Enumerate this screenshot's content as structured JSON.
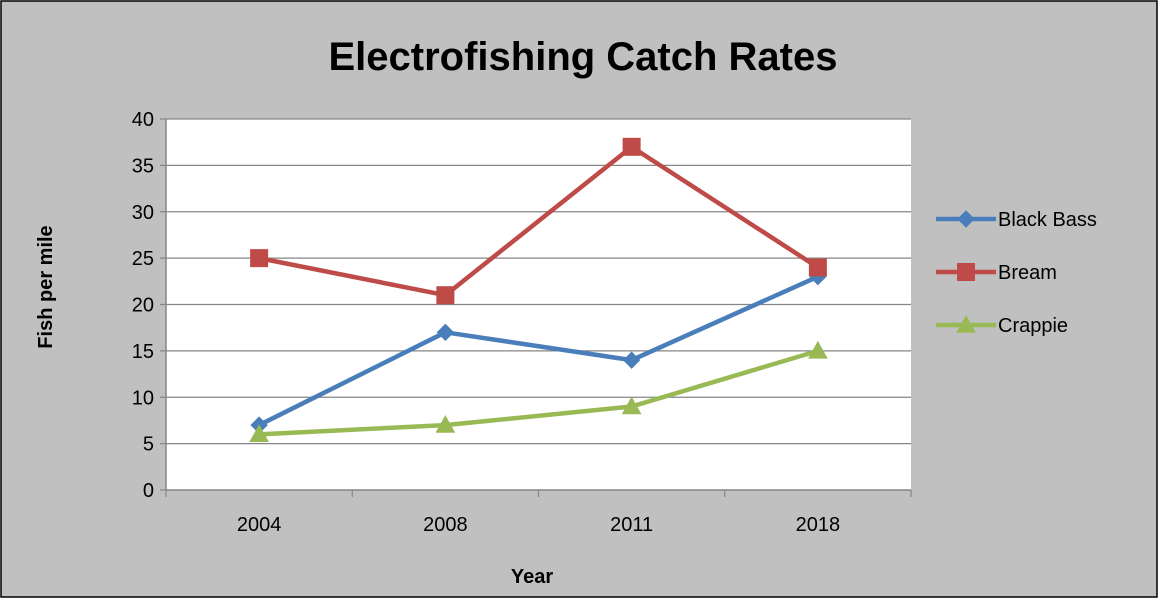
{
  "chart_data": {
    "type": "line",
    "title": "Electrofishing Catch Rates",
    "xlabel": "Year",
    "ylabel": "Fish per mile",
    "categories": [
      "2004",
      "2008",
      "2011",
      "2018"
    ],
    "ylim": [
      0,
      40
    ],
    "yticks": [
      0,
      5,
      10,
      15,
      20,
      25,
      30,
      35,
      40
    ],
    "grid": true,
    "legend_position": "right",
    "series": [
      {
        "name": "Black Bass",
        "values": [
          7,
          17,
          14,
          23
        ],
        "color": "#4a7ebb",
        "marker": "diamond"
      },
      {
        "name": "Bream",
        "values": [
          25,
          21,
          37,
          24
        ],
        "color": "#be4b48",
        "marker": "square"
      },
      {
        "name": "Crappie",
        "values": [
          6,
          7,
          9,
          15
        ],
        "color": "#98b954",
        "marker": "triangle"
      }
    ]
  }
}
